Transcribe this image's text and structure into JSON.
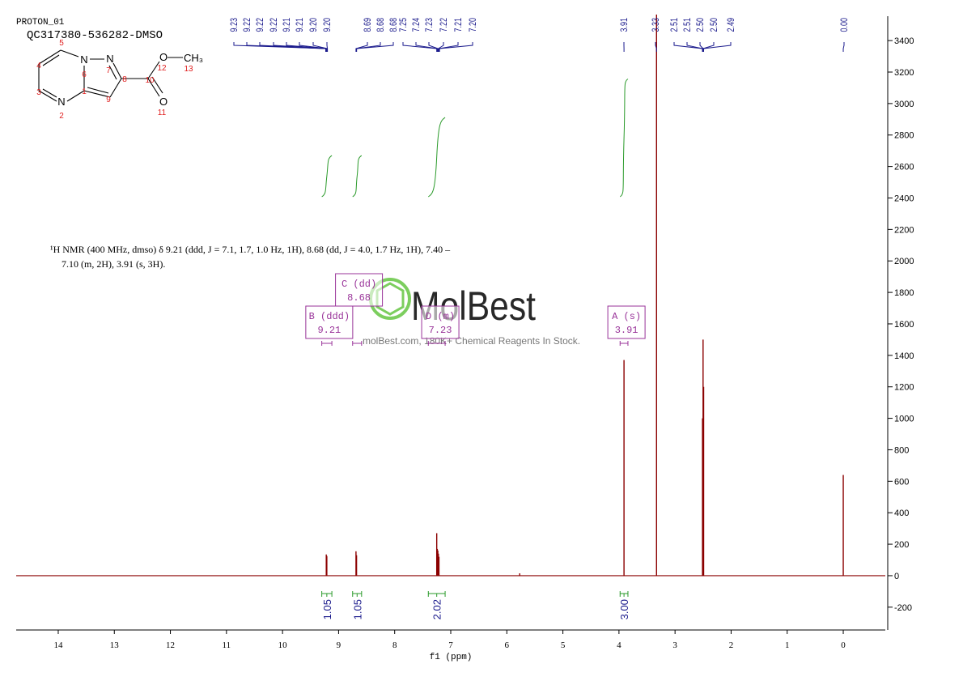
{
  "chart_data": {
    "type": "nmr",
    "header": [
      "PROTON_01",
      "QC317380-536282-DMSO"
    ],
    "description": [
      "¹H NMR (400 MHz, dmso) δ 9.21 (ddd, J = 7.1, 1.7, 1.0 Hz, 1H), 8.68 (dd, J = 4.0, 1.7 Hz, 1H), 7.40 –",
      "7.10 (m, 2H), 3.91 (s, 3H)."
    ],
    "structure": {
      "atoms": [
        "N",
        "N",
        "N",
        "O",
        "O",
        "CH₃"
      ],
      "atom_numbers": [
        1,
        2,
        3,
        4,
        5,
        6,
        7,
        8,
        9,
        10,
        11,
        12,
        13
      ]
    },
    "watermark": [
      "MolBest",
      "molBest.com, 180K+ Chemical Reagents In Stock."
    ],
    "xlabel": "f1 (ppm)",
    "xlim": [
      14.75,
      -0.75
    ],
    "xticks": [
      14,
      13,
      12,
      11,
      10,
      9,
      8,
      7,
      6,
      5,
      4,
      3,
      2,
      1,
      0
    ],
    "ylim": [
      -345,
      3555
    ],
    "yticks": [
      -200,
      0,
      200,
      400,
      600,
      800,
      1000,
      1200,
      1400,
      1600,
      1800,
      2000,
      2200,
      2400,
      2600,
      2800,
      3000,
      3200,
      3400
    ],
    "peak_labels": [
      9.23,
      9.22,
      9.22,
      9.22,
      9.21,
      9.21,
      {
        "value": 9.2,
        "label": "9.20"
      },
      {
        "value": 9.2,
        "label": "9.20"
      },
      8.69,
      8.68,
      8.68,
      7.25,
      7.24,
      7.23,
      7.22,
      7.21,
      {
        "value": 7.2,
        "label": "7.20"
      },
      3.91,
      3.33,
      2.51,
      2.51,
      {
        "value": 2.5,
        "label": "2.50"
      },
      {
        "value": 2.5,
        "label": "2.50"
      },
      2.49,
      {
        "value": 0,
        "label": "0.00"
      }
    ],
    "peaks": {
      "color": "#8b0000",
      "x": [
        9.22,
        9.21,
        8.69,
        8.68,
        7.25,
        7.24,
        7.23,
        7.22,
        7.21,
        5.77,
        3.91,
        3.33,
        2.51,
        2.5,
        2.49,
        0
      ],
      "values": [
        135,
        125,
        155,
        130,
        270,
        170,
        160,
        140,
        120,
        15,
        1370,
        3600,
        1000,
        1500,
        1200,
        640
      ]
    },
    "multiplets": [
      {
        "name": "B (ddd)",
        "shift": 9.21,
        "range": [
          9.3,
          9.12
        ]
      },
      {
        "name": "C (dd)",
        "shift": 8.68,
        "range": [
          8.75,
          8.59
        ]
      },
      {
        "name": "D (m)",
        "shift": 7.23,
        "range": [
          7.4,
          7.1
        ]
      },
      {
        "name": "A (s)",
        "shift": 3.91,
        "range": [
          3.98,
          3.84
        ]
      }
    ],
    "integrals": {
      "values": [
        1.05,
        1.05,
        2.02,
        3
      ],
      "value_labels": [
        "1.05",
        "1.05",
        "2.02",
        "3.00"
      ],
      "ranges": [
        [
          9.3,
          9.12
        ],
        [
          8.75,
          8.59
        ],
        [
          7.4,
          7.1
        ],
        [
          3.98,
          3.84
        ]
      ]
    }
  }
}
